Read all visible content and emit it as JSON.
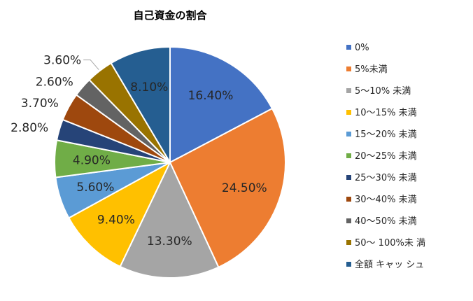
{
  "chart_data": {
    "type": "pie",
    "title": "自己資金の割合",
    "categories": [
      "0%",
      "5%未満",
      "5～10% 未満",
      "10～15% 未満",
      "15～20% 未満",
      "20～25% 未満",
      "25～30% 未満",
      "30～40% 未満",
      "40～50% 未満",
      "50～ 100%未 満",
      "全額 キャッ シュ"
    ],
    "values": [
      16.4,
      24.5,
      13.3,
      9.4,
      5.6,
      4.9,
      2.8,
      3.7,
      2.6,
      3.6,
      8.1
    ],
    "labels": [
      "16.40%",
      "24.50%",
      "13.30%",
      "9.40%",
      "5.60%",
      "4.90%",
      "2.80%",
      "3.70%",
      "2.60%",
      "3.60%",
      "8.10%"
    ],
    "colors": [
      "#4472C4",
      "#ED7D31",
      "#A5A5A5",
      "#FFC000",
      "#5B9BD5",
      "#70AD47",
      "#264478",
      "#9E480E",
      "#636363",
      "#997300",
      "#255E91"
    ],
    "legend_position": "right",
    "start_angle_deg": 0,
    "direction": "clockwise"
  }
}
